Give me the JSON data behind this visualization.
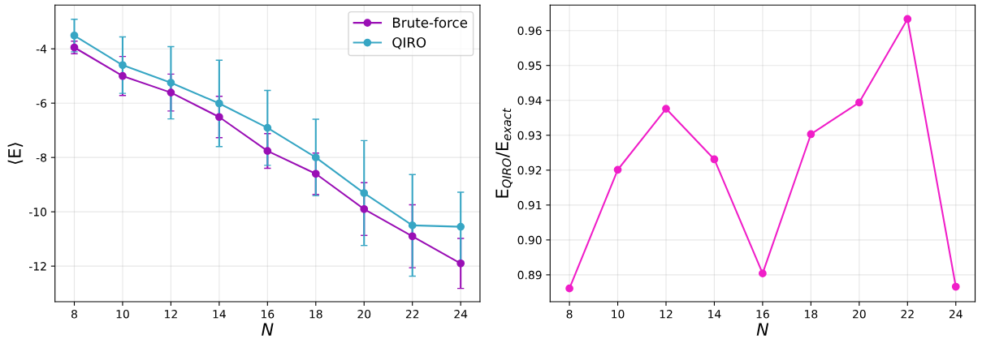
{
  "chart_data": [
    {
      "type": "line",
      "xlabel": "N",
      "ylabel": "⟨E⟩",
      "x": [
        8,
        10,
        12,
        14,
        16,
        18,
        20,
        22,
        24
      ],
      "series": [
        {
          "name": "Brute-force",
          "color": "#9a0fb5",
          "values": [
            -3.95,
            -5.0,
            -5.61,
            -6.51,
            -7.76,
            -8.6,
            -9.9,
            -10.9,
            -11.9
          ],
          "errors": [
            0.23,
            0.72,
            0.68,
            0.76,
            0.64,
            0.76,
            0.97,
            1.16,
            0.92
          ]
        },
        {
          "name": "QIRO",
          "color": "#37a6c4",
          "values": [
            -3.51,
            -4.6,
            -5.25,
            -6.01,
            -6.91,
            -8.0,
            -9.31,
            -10.5,
            -10.55
          ],
          "errors": [
            0.6,
            1.04,
            1.33,
            1.59,
            1.38,
            1.41,
            1.93,
            1.87,
            1.27
          ]
        }
      ],
      "xlim": [
        7.2,
        24.8
      ],
      "xticks": [
        8,
        10,
        12,
        14,
        16,
        18,
        20,
        22,
        24
      ],
      "ylim": [
        -13.31,
        -2.39
      ],
      "yticks": [
        -12,
        -10,
        -8,
        -6,
        -4
      ],
      "grid": true,
      "legend": "top right",
      "marker": "circle",
      "line_style": "solid"
    },
    {
      "type": "line",
      "xlabel": "N",
      "ylabel": "E$_{QIRO}$/E$_{exact}$",
      "x": [
        8,
        10,
        12,
        14,
        16,
        18,
        20,
        22,
        24
      ],
      "series": [
        {
          "color": "#f01ec8",
          "values": [
            0.8861,
            0.9201,
            0.9376,
            0.9231,
            0.8904,
            0.9303,
            0.9394,
            0.9633,
            0.8866
          ]
        }
      ],
      "xlim": [
        7.2,
        24.8
      ],
      "xticks": [
        8,
        10,
        12,
        14,
        16,
        18,
        20,
        22,
        24
      ],
      "ylim": [
        0.8823,
        0.9673
      ],
      "yticks": [
        {
          "value": 0.89,
          "label": "0.89"
        },
        {
          "value": 0.9,
          "label": "0.90"
        },
        {
          "value": 0.91,
          "label": "0.91"
        },
        {
          "value": 0.92,
          "label": "0.92"
        },
        {
          "value": 0.93,
          "label": "0.93"
        },
        {
          "value": 0.94,
          "label": "0.94"
        },
        {
          "value": 0.95,
          "label": "0.95"
        },
        {
          "value": 0.96,
          "label": "0.96"
        }
      ],
      "grid": true,
      "marker": "circle",
      "line_style": "solid"
    }
  ]
}
